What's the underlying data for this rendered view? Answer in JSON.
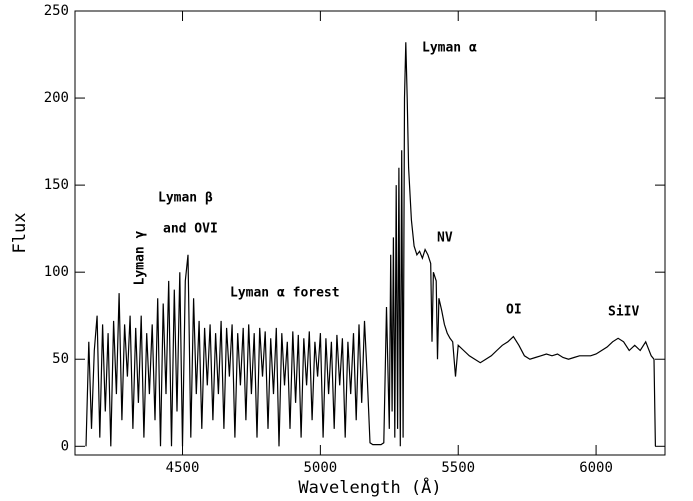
{
  "chart_data": {
    "type": "line",
    "x_label": "Wavelength (Å)",
    "y_label": "Flux",
    "annotations": [
      "Lyman α",
      "NV",
      "OI",
      "SiIV",
      "Lyman α forest",
      "Lyman β",
      "and OVI",
      "Lyman γ"
    ],
    "xlim": [
      4110,
      6250
    ],
    "ylim": [
      -5,
      250
    ],
    "xticks": [
      4500,
      5000,
      5500,
      6000
    ],
    "yticks": [
      0,
      50,
      100,
      150,
      200,
      250
    ],
    "series": [
      {
        "color": "#000000",
        "x": [
          4150,
          4160,
          4170,
          4180,
          4190,
          4200,
          4210,
          4220,
          4230,
          4240,
          4250,
          4260,
          4270,
          4280,
          4290,
          4300,
          4310,
          4320,
          4330,
          4340,
          4350,
          4360,
          4370,
          4380,
          4390,
          4400,
          4410,
          4420,
          4430,
          4440,
          4450,
          4460,
          4470,
          4480,
          4490,
          4500,
          4510,
          4520,
          4530,
          4540,
          4550,
          4560,
          4570,
          4580,
          4590,
          4600,
          4610,
          4620,
          4630,
          4640,
          4650,
          4660,
          4670,
          4680,
          4690,
          4700,
          4710,
          4720,
          4730,
          4740,
          4750,
          4760,
          4770,
          4780,
          4790,
          4800,
          4810,
          4820,
          4830,
          4840,
          4850,
          4860,
          4870,
          4880,
          4890,
          4900,
          4910,
          4920,
          4930,
          4940,
          4950,
          4960,
          4970,
          4980,
          4990,
          5000,
          5010,
          5020,
          5030,
          5040,
          5050,
          5060,
          5070,
          5080,
          5090,
          5100,
          5110,
          5120,
          5130,
          5140,
          5150,
          5160,
          5170,
          5180,
          5190,
          5200,
          5210,
          5220,
          5230,
          5240,
          5250,
          5255,
          5260,
          5265,
          5270,
          5275,
          5280,
          5285,
          5290,
          5295,
          5300,
          5305,
          5310,
          5315,
          5320,
          5330,
          5340,
          5350,
          5360,
          5370,
          5380,
          5390,
          5400,
          5405,
          5410,
          5420,
          5425,
          5430,
          5440,
          5450,
          5460,
          5470,
          5480,
          5490,
          5500,
          5520,
          5540,
          5560,
          5580,
          5600,
          5620,
          5640,
          5660,
          5680,
          5700,
          5720,
          5740,
          5760,
          5780,
          5800,
          5820,
          5840,
          5860,
          5880,
          5900,
          5920,
          5940,
          5960,
          5980,
          6000,
          6020,
          6040,
          6060,
          6080,
          6100,
          6120,
          6140,
          6160,
          6180,
          6200,
          6210,
          6215
        ],
        "values": [
          0,
          60,
          10,
          55,
          75,
          5,
          70,
          20,
          65,
          0,
          72,
          30,
          88,
          15,
          70,
          40,
          75,
          10,
          68,
          25,
          75,
          5,
          65,
          30,
          70,
          15,
          85,
          0,
          82,
          30,
          95,
          0,
          90,
          20,
          100,
          0,
          95,
          110,
          5,
          85,
          30,
          72,
          10,
          68,
          35,
          70,
          15,
          65,
          30,
          72,
          10,
          68,
          40,
          70,
          5,
          65,
          35,
          68,
          15,
          70,
          30,
          65,
          5,
          68,
          40,
          66,
          10,
          62,
          30,
          68,
          0,
          65,
          35,
          60,
          10,
          66,
          25,
          64,
          5,
          62,
          35,
          66,
          15,
          60,
          40,
          65,
          5,
          62,
          30,
          60,
          10,
          64,
          35,
          62,
          5,
          60,
          30,
          65,
          15,
          70,
          25,
          72,
          40,
          2,
          1,
          1,
          1,
          1,
          2,
          80,
          10,
          110,
          20,
          120,
          5,
          150,
          10,
          160,
          0,
          170,
          5,
          200,
          232,
          200,
          160,
          130,
          115,
          110,
          112,
          108,
          113,
          110,
          105,
          60,
          100,
          95,
          50,
          85,
          78,
          70,
          65,
          62,
          60,
          40,
          58,
          55,
          52,
          50,
          48,
          50,
          52,
          55,
          58,
          60,
          63,
          58,
          52,
          50,
          51,
          52,
          53,
          52,
          53,
          51,
          50,
          51,
          52,
          52,
          52,
          53,
          55,
          57,
          60,
          62,
          60,
          55,
          58,
          55,
          60,
          52,
          50,
          0
        ]
      }
    ]
  }
}
